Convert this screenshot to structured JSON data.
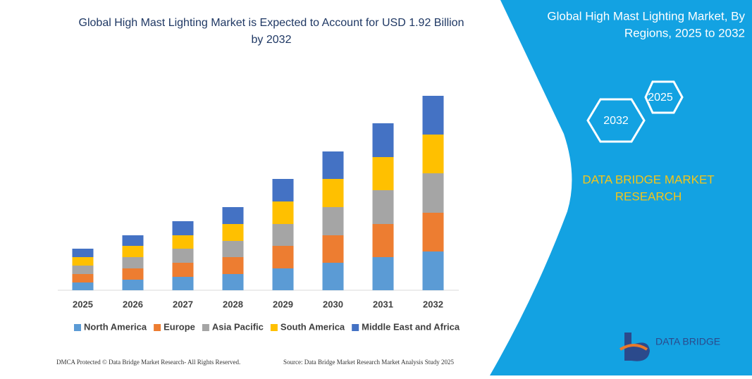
{
  "chart_data": {
    "type": "stacked_bar",
    "title": "Global High Mast Lighting Market is Expected to Account for USD 1.92 Billion by 2032",
    "categories": [
      "2025",
      "2026",
      "2027",
      "2028",
      "2029",
      "2030",
      "2031",
      "2032"
    ],
    "series": [
      {
        "name": "North America",
        "color": "#5b9bd5",
        "values": [
          11,
          15,
          19,
          23,
          31,
          39,
          47,
          55
        ]
      },
      {
        "name": "Europe",
        "color": "#ed7d31",
        "values": [
          12,
          16,
          20,
          24,
          32,
          39,
          47,
          55
        ]
      },
      {
        "name": "Asia Pacific",
        "color": "#a5a5a5",
        "values": [
          12,
          16,
          20,
          23,
          31,
          40,
          48,
          56
        ]
      },
      {
        "name": "South America",
        "color": "#ffc000",
        "values": [
          12,
          16,
          19,
          24,
          32,
          40,
          47,
          55
        ]
      },
      {
        "name": "Middle East and Africa",
        "color": "#4472c4",
        "values": [
          12,
          15,
          20,
          24,
          32,
          39,
          48,
          55
        ]
      }
    ]
  },
  "panel": {
    "title_line1": "Global High Mast Lighting Market, By",
    "title_line2": "Regions, 2025 to 2032",
    "hex_a": "2025",
    "hex_b": "2032",
    "brand_line1": "DATA BRIDGE MARKET",
    "brand_line2": "RESEARCH"
  },
  "logo": {
    "text": "DATA BRIDGE"
  },
  "footer": {
    "left": "DMCA Protected © Data Bridge Market Research- All Rights Reserved.",
    "right": "Source: Data Bridge Market Research Market Analysis Study 2025"
  }
}
